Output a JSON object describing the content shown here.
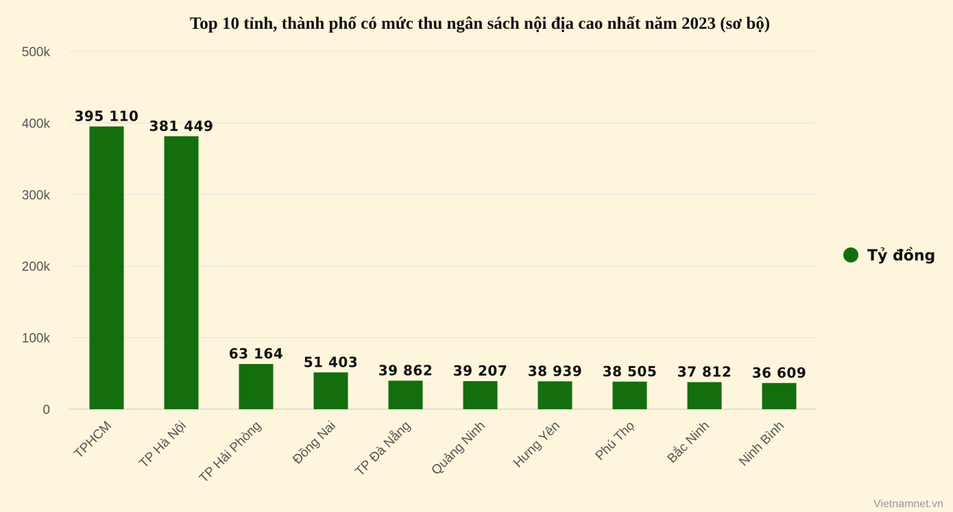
{
  "chart_data": {
    "type": "bar",
    "title": "Top 10 tỉnh, thành phố có mức thu ngân sách nội địa cao nhất năm 2023 (sơ bộ)",
    "categories": [
      "TPHCM",
      "TP Hà Nội",
      "TP Hải Phòng",
      "Đồng Nai",
      "TP Đà Nẵng",
      "Quảng Ninh",
      "Hưng Yên",
      "Phú Thọ",
      "Bắc Ninh",
      "Ninh Bình"
    ],
    "series": [
      {
        "name": "Tỷ đồng",
        "color": "#146e0d",
        "values": [
          395110,
          381449,
          63164,
          51403,
          39862,
          39207,
          38939,
          38505,
          37812,
          36609
        ],
        "labels": [
          "395 110",
          "381 449",
          "63 164",
          "51 403",
          "39 862",
          "39 207",
          "38 939",
          "38 505",
          "37 812",
          "36 609"
        ]
      }
    ],
    "ylim": [
      0,
      500000
    ],
    "yticks": [
      0,
      100000,
      200000,
      300000,
      400000,
      500000
    ],
    "ytick_labels": [
      "0",
      "100k",
      "200k",
      "300k",
      "400k",
      "500k"
    ],
    "xlabel": "",
    "ylabel": "",
    "grid": true,
    "legend_position": "right"
  },
  "credit": "Vietnamnet.vn",
  "colors": {
    "background": "#fdf6dc",
    "bar": "#146e0d",
    "grid": "#dfe3e8"
  }
}
